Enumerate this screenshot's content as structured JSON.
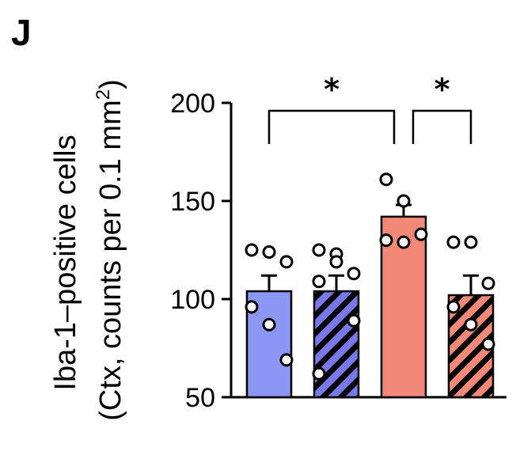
{
  "panel_label": "J",
  "chart_data": {
    "type": "bar",
    "ylabel_line1": "Iba-1–positive cells",
    "ylabel_line2_pre": "(Ctx, counts per 0.1 mm",
    "ylabel_sup": "2",
    "ylabel_line2_post": ")",
    "ylim": [
      50,
      200
    ],
    "yticks": [
      50,
      100,
      150,
      200
    ],
    "ytick_labels": [
      "50",
      "100",
      "150",
      "200"
    ],
    "bars": [
      {
        "value": 104,
        "sem": 8,
        "fill": "#8c96f5",
        "hatched": false,
        "points": [
          125,
          124,
          119,
          96,
          87,
          69
        ]
      },
      {
        "value": 104,
        "sem": 8,
        "fill": "#7878e8",
        "hatched": true,
        "points": [
          125,
          123,
          113,
          109,
          119,
          89,
          62
        ]
      },
      {
        "value": 142,
        "sem": 6,
        "fill": "#f28878",
        "hatched": false,
        "points": [
          161,
          150,
          133,
          130,
          129
        ]
      },
      {
        "value": 102,
        "sem": 10,
        "fill": "#f28878",
        "hatched": true,
        "points": [
          129,
          129,
          108,
          96,
          87,
          77
        ]
      }
    ],
    "significance": [
      {
        "from_bar": 0,
        "to_bar": 2,
        "label": "*"
      },
      {
        "from_bar": 2,
        "to_bar": 3,
        "label": "*"
      }
    ]
  }
}
